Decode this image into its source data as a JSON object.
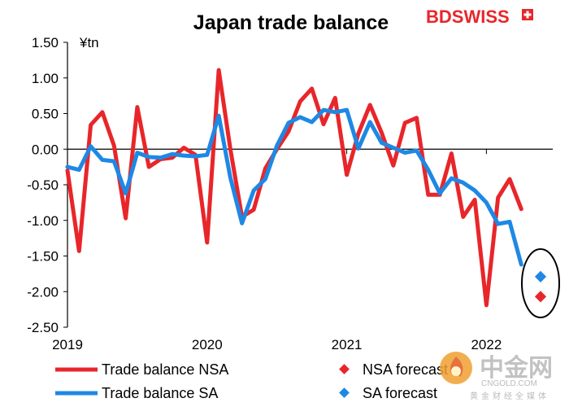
{
  "header": {
    "brand": "BDSWISS"
  },
  "watermark": {
    "name": "中金网",
    "domain": "CNGOLD.COM",
    "tagline": "黄金财经全媒体",
    "icon": "flame-logo-icon"
  },
  "chart_data": {
    "type": "line",
    "title": "Japan trade balance",
    "unit_label": "¥tn",
    "ylim": [
      -2.5,
      1.5
    ],
    "yticks": [
      1.5,
      1.0,
      0.5,
      0.0,
      -0.5,
      -1.0,
      -1.5,
      -2.0,
      -2.5
    ],
    "ytick_labels": [
      "1.50",
      "1.00",
      "0.50",
      "0.00",
      "-0.50",
      "-1.00",
      "-1.50",
      "-2.00",
      "-2.50"
    ],
    "x_axis": {
      "start": "2019-01",
      "end": "2022-06",
      "ticks": [
        "2019",
        "2020",
        "2021",
        "2022"
      ]
    },
    "grid": false,
    "legend_position": "bottom",
    "series": [
      {
        "name": "Trade balance NSA",
        "color": "#e8262a",
        "x": [
          "2019-01",
          "2019-02",
          "2019-03",
          "2019-04",
          "2019-05",
          "2019-06",
          "2019-07",
          "2019-08",
          "2019-09",
          "2019-10",
          "2019-11",
          "2019-12",
          "2020-01",
          "2020-02",
          "2020-03",
          "2020-04",
          "2020-05",
          "2020-06",
          "2020-07",
          "2020-08",
          "2020-09",
          "2020-10",
          "2020-11",
          "2020-12",
          "2021-01",
          "2021-02",
          "2021-03",
          "2021-04",
          "2021-05",
          "2021-06",
          "2021-07",
          "2021-08",
          "2021-09",
          "2021-10",
          "2021-11",
          "2021-12",
          "2022-01",
          "2022-02",
          "2022-03",
          "2022-04",
          "2022-05"
        ],
        "values": [
          -0.3,
          -1.43,
          0.34,
          0.52,
          0.05,
          -0.97,
          0.59,
          -0.25,
          -0.14,
          -0.12,
          0.02,
          -0.08,
          -1.31,
          1.11,
          0.0,
          -0.95,
          -0.85,
          -0.27,
          -0.0,
          0.25,
          0.67,
          0.85,
          0.35,
          0.72,
          -0.36,
          0.22,
          0.62,
          0.23,
          -0.23,
          0.37,
          0.44,
          -0.64,
          -0.64,
          -0.06,
          -0.95,
          -0.71,
          -2.19,
          -0.68,
          -0.42,
          -0.84,
          null
        ],
        "end_index": 40
      },
      {
        "name": "Trade balance SA",
        "color": "#1e88e5",
        "x": [
          "2019-01",
          "2019-02",
          "2019-03",
          "2019-04",
          "2019-05",
          "2019-06",
          "2019-07",
          "2019-08",
          "2019-09",
          "2019-10",
          "2019-11",
          "2019-12",
          "2020-01",
          "2020-02",
          "2020-03",
          "2020-04",
          "2020-05",
          "2020-06",
          "2020-07",
          "2020-08",
          "2020-09",
          "2020-10",
          "2020-11",
          "2020-12",
          "2021-01",
          "2021-02",
          "2021-03",
          "2021-04",
          "2021-05",
          "2021-06",
          "2021-07",
          "2021-08",
          "2021-09",
          "2021-10",
          "2021-11",
          "2021-12",
          "2022-01",
          "2022-02",
          "2022-03",
          "2022-04",
          "2022-05"
        ],
        "values": [
          -0.25,
          -0.29,
          0.04,
          -0.15,
          -0.17,
          -0.62,
          -0.05,
          -0.11,
          -0.12,
          -0.07,
          -0.09,
          -0.1,
          -0.08,
          0.47,
          -0.4,
          -1.04,
          -0.58,
          -0.42,
          0.05,
          0.37,
          0.45,
          0.38,
          0.55,
          0.52,
          0.55,
          0.01,
          0.38,
          0.09,
          0.02,
          -0.05,
          -0.02,
          -0.29,
          -0.62,
          -0.41,
          -0.47,
          -0.58,
          -0.75,
          -1.05,
          -1.02,
          -1.62,
          null
        ]
      }
    ],
    "forecasts": [
      {
        "name": "NSA forecast",
        "x": "2022-05",
        "value": -2.07,
        "color": "#e8262a"
      },
      {
        "name": "SA forecast",
        "x": "2022-05",
        "value": -1.79,
        "color": "#1e88e5"
      }
    ],
    "annotations": [
      {
        "type": "ellipse",
        "around": "forecasts",
        "color": "#000000"
      }
    ]
  }
}
